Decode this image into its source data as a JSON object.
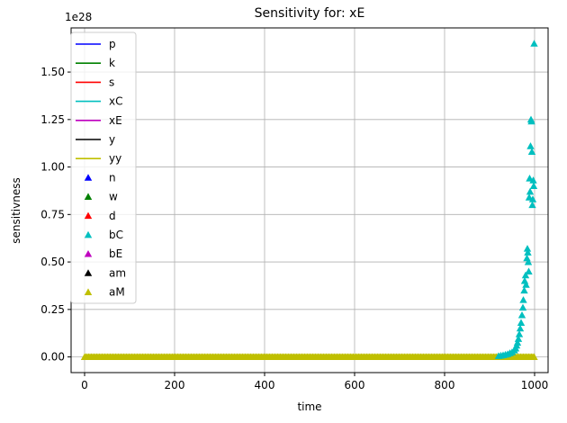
{
  "chart_data": {
    "type": "scatter",
    "title": "Sensitivity for: xE",
    "xlabel": "time",
    "ylabel": "sensitivness",
    "y_offset_label": "1e28",
    "y_scale": 1e+28,
    "xlim": [
      -30,
      1030
    ],
    "ylim": [
      -0.0825,
      1.7325
    ],
    "xticks": [
      0,
      200,
      400,
      600,
      800,
      1000
    ],
    "xtick_labels": [
      "0",
      "200",
      "400",
      "600",
      "800",
      "1000"
    ],
    "yticks": [
      0.0,
      0.25,
      0.5,
      0.75,
      1.0,
      1.25,
      1.5
    ],
    "ytick_labels": [
      "0.00",
      "0.25",
      "0.50",
      "0.75",
      "1.00",
      "1.25",
      "1.50"
    ],
    "grid": true,
    "legend_position": "upper-left",
    "series": [
      {
        "name": "p",
        "kind": "line",
        "color": "#0000ff"
      },
      {
        "name": "k",
        "kind": "line",
        "color": "#008000"
      },
      {
        "name": "s",
        "kind": "line",
        "color": "#ff0000"
      },
      {
        "name": "xC",
        "kind": "line",
        "color": "#00bfbf"
      },
      {
        "name": "xE",
        "kind": "line",
        "color": "#bf00bf"
      },
      {
        "name": "y",
        "kind": "line",
        "color": "#000000"
      },
      {
        "name": "yy",
        "kind": "line",
        "color": "#bfbf00"
      },
      {
        "name": "n",
        "kind": "marker",
        "color": "#0000ff"
      },
      {
        "name": "w",
        "kind": "marker",
        "color": "#008000"
      },
      {
        "name": "d",
        "kind": "marker",
        "color": "#ff0000"
      },
      {
        "name": "bC",
        "kind": "marker",
        "color": "#00bfbf"
      },
      {
        "name": "bE",
        "kind": "marker",
        "color": "#bf00bf"
      },
      {
        "name": "am",
        "kind": "marker",
        "color": "#000000"
      },
      {
        "name": "aM",
        "kind": "marker",
        "color": "#bfbf00"
      }
    ],
    "bC_points": [
      {
        "x": 920,
        "y": 0.005
      },
      {
        "x": 925,
        "y": 0.007
      },
      {
        "x": 930,
        "y": 0.009
      },
      {
        "x": 935,
        "y": 0.012
      },
      {
        "x": 940,
        "y": 0.015
      },
      {
        "x": 945,
        "y": 0.02
      },
      {
        "x": 950,
        "y": 0.025
      },
      {
        "x": 955,
        "y": 0.035
      },
      {
        "x": 958,
        "y": 0.045
      },
      {
        "x": 960,
        "y": 0.06
      },
      {
        "x": 962,
        "y": 0.075
      },
      {
        "x": 964,
        "y": 0.095
      },
      {
        "x": 966,
        "y": 0.12
      },
      {
        "x": 968,
        "y": 0.15
      },
      {
        "x": 970,
        "y": 0.18
      },
      {
        "x": 972,
        "y": 0.22
      },
      {
        "x": 974,
        "y": 0.26
      },
      {
        "x": 975,
        "y": 0.3
      },
      {
        "x": 977,
        "y": 0.35
      },
      {
        "x": 978,
        "y": 0.4
      },
      {
        "x": 980,
        "y": 0.43
      },
      {
        "x": 981,
        "y": 0.38
      },
      {
        "x": 983,
        "y": 0.52
      },
      {
        "x": 984,
        "y": 0.57
      },
      {
        "x": 985,
        "y": 0.55
      },
      {
        "x": 986,
        "y": 0.5
      },
      {
        "x": 987,
        "y": 0.45
      },
      {
        "x": 988,
        "y": 0.84
      },
      {
        "x": 989,
        "y": 0.94
      },
      {
        "x": 990,
        "y": 0.87
      },
      {
        "x": 991,
        "y": 1.11
      },
      {
        "x": 992,
        "y": 1.25
      },
      {
        "x": 993,
        "y": 1.24
      },
      {
        "x": 994,
        "y": 1.08
      },
      {
        "x": 995,
        "y": 0.8
      },
      {
        "x": 996,
        "y": 0.83
      },
      {
        "x": 997,
        "y": 0.93
      },
      {
        "x": 998,
        "y": 0.9
      },
      {
        "x": 999,
        "y": 1.65
      }
    ],
    "zero_points_x_range": [
      0,
      1000
    ],
    "zero_points_color": "#bfbf00"
  }
}
